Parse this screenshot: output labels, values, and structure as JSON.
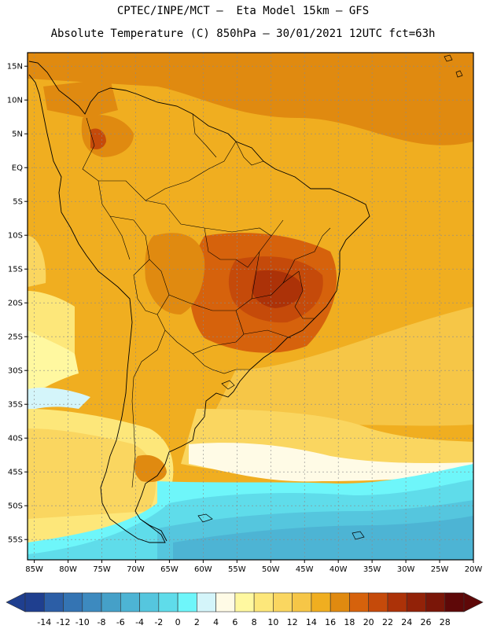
{
  "header": {
    "line1": "CPTEC/INPE/MCT –  Eta Model 15km – GFS",
    "line2": "Absolute Temperature (C) 850hPa – 30/01/2021 12UTC fct=63h"
  },
  "map": {
    "lat_labels": [
      "15N",
      "10N",
      "5N",
      "EQ",
      "5S",
      "10S",
      "15S",
      "20S",
      "25S",
      "30S",
      "35S",
      "40S",
      "45S",
      "50S",
      "55S"
    ],
    "lon_labels": [
      "85W",
      "80W",
      "75W",
      "70W",
      "65W",
      "60W",
      "55W",
      "50W",
      "45W",
      "40W",
      "35W",
      "30W",
      "25W",
      "20W"
    ],
    "lat_range": [
      17,
      -58
    ],
    "lon_range": [
      -86,
      -20
    ]
  },
  "colorbar": {
    "labels": [
      "-14",
      "-12",
      "-10",
      "-8",
      "-6",
      "-4",
      "-2",
      "0",
      "2",
      "4",
      "6",
      "8",
      "10",
      "12",
      "14",
      "16",
      "18",
      "20",
      "22",
      "24",
      "26",
      "28"
    ],
    "colors": [
      "#1f3f8f",
      "#2c5ea6",
      "#3474b3",
      "#3d8abf",
      "#45a0c8",
      "#4db4d4",
      "#55c6de",
      "#5fdcea",
      "#6ef6fa",
      "#d4f5fa",
      "#fffbe6",
      "#fff8a0",
      "#fde77a",
      "#fad660",
      "#f6c647",
      "#f0ae20",
      "#e08a10",
      "#d6620c",
      "#c54a0a",
      "#ac3208",
      "#922208",
      "#7a1608",
      "#5e0808"
    ]
  }
}
